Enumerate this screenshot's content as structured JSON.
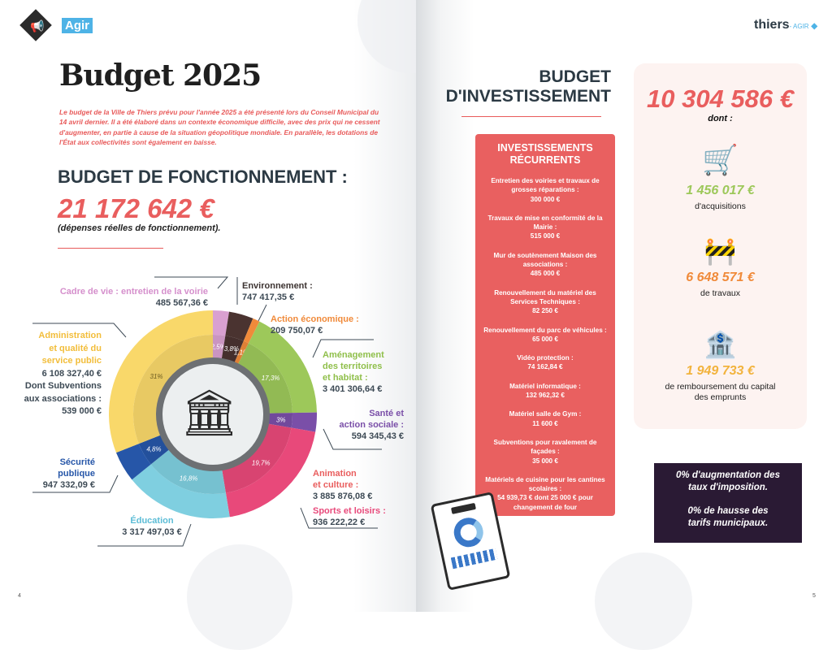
{
  "header": {
    "section_tag": "Agir",
    "brand": "thiers",
    "brand_suffix": "- AGIR"
  },
  "left": {
    "title": "Budget 2025",
    "intro": "Le budget de la Ville de Thiers prévu pour l'année 2025 a été présenté lors du Conseil Municipal du 14 avril dernier. Il a été élaboré dans un contexte économique difficile, avec des prix qui ne cessent d'augmenter, en partie à cause de la situation géopolitique mondiale. En parallèle, les dotations de l'État aux collectivités sont également en baisse.",
    "section_title": "BUDGET DE FONCTIONNEMENT :",
    "total": "21 172 642 €",
    "total_note": "(dépenses réelles de fonctionnement).",
    "page_number": "4"
  },
  "chart_data": {
    "type": "pie",
    "title": "Budget de fonctionnement",
    "slices": [
      {
        "name": "Cadre de vie : entretien de la voirie",
        "amount": "485 567,36 €",
        "percent": 2.5,
        "label": "2,5%",
        "color": "#d9a0d0"
      },
      {
        "name": "Environnement :",
        "amount": "747 417,35 €",
        "percent": 3.8,
        "label": "3,8%",
        "color": "#4a3330"
      },
      {
        "name": "Action économique :",
        "amount": "209 750,07 €",
        "percent": 1.1,
        "label": "1,1%",
        "color": "#f08a3a"
      },
      {
        "name": "Aménagement des territoires et habitat :",
        "amount": "3 401 306,64 €",
        "percent": 17.3,
        "label": "17,3%",
        "color": "#9dc85a"
      },
      {
        "name": "Santé et action sociale :",
        "amount": "594 345,43 €",
        "percent": 3,
        "label": "3%",
        "color": "#7a4fa8"
      },
      {
        "name": "Animation et culture : / Sports et loisirs :",
        "amount": "3 885 876,08 € / 936 222,22 €",
        "percent": 19.7,
        "label": "19,7%",
        "color": "#e8497a"
      },
      {
        "name": "Éducation",
        "amount": "3 317 497,03 €",
        "percent": 16.8,
        "label": "16,8%",
        "color": "#7fcfe0"
      },
      {
        "name": "Sécurité publique",
        "amount": "947 332,09 €",
        "percent": 4.8,
        "label": "4,8%",
        "color": "#2656a8"
      },
      {
        "name": "Administration et qualité du service public",
        "amount": "6 108 327,40 €",
        "percent": 31,
        "label": "31%",
        "color": "#f9d86a"
      }
    ]
  },
  "labels": {
    "cadre": {
      "name": "Cadre de vie : entretien de la voirie",
      "value": "485 567,36 €"
    },
    "env": {
      "name": "Environnement :",
      "value": "747 417,35 €"
    },
    "eco": {
      "name": "Action économique :",
      "value": "209 750,07 €"
    },
    "amen": {
      "name1": "Aménagement",
      "name2": "des territoires",
      "name3": "et habitat :",
      "value": "3 401 306,64 €"
    },
    "sante": {
      "name1": "Santé et",
      "name2": "action sociale :",
      "value": "594 345,43 €"
    },
    "anim": {
      "name1": "Animation",
      "name2": "et culture :",
      "value": "3 885 876,08 €"
    },
    "sports": {
      "name": "Sports et loisirs :",
      "value": "936 222,22 €"
    },
    "edu": {
      "name": "Éducation",
      "value": "3 317 497,03 €"
    },
    "secu": {
      "name1": "Sécurité",
      "name2": "publique",
      "value": "947 332,09 €"
    },
    "admin": {
      "name1": "Administration",
      "name2": "et qualité du",
      "name3": "service public",
      "value": "6 108 327,40 €",
      "sub1": "Dont Subventions",
      "sub2": "aux associations :",
      "sub_value": "539 000 €"
    }
  },
  "right": {
    "title1": "BUDGET",
    "title2": "D'INVESTISSEMENT",
    "recurring_title": "INVESTISSEMENTS RÉCURRENTS",
    "recurring": [
      {
        "label": "Entretien des voiries et travaux de grosses réparations :",
        "value": "300 000 €"
      },
      {
        "label": "Travaux de mise en conformité de la Mairie :",
        "value": "515 000 €"
      },
      {
        "label": "Mur de soutènement Maison des associations :",
        "value": "485 000 €"
      },
      {
        "label": "Renouvellement du matériel des Services Techniques :",
        "value": "82 250 €"
      },
      {
        "label": "Renouvellement du parc de véhicules :",
        "value": "65 000 €"
      },
      {
        "label": "Vidéo protection :",
        "value": "74 162,84 €"
      },
      {
        "label": "Matériel informatique :",
        "value": "132 962,32 €"
      },
      {
        "label": "Matériel salle de Gym :",
        "value": "11 600 €"
      },
      {
        "label": "Subventions pour ravalement de façades :",
        "value": "35 000 €"
      },
      {
        "label": "Matériels de cuisine pour les cantines scolaires :",
        "value": "54 939,73 € dont 25 000 € pour changement de four"
      }
    ],
    "total": "10 304 586 €",
    "dont": "dont :",
    "stats": [
      {
        "value": "1 456 017 €",
        "desc": "d'acquisitions",
        "color": "#9dc85a",
        "icon": "shopping-cart-icon"
      },
      {
        "value": "6 648 571 €",
        "desc": "de travaux",
        "color": "#f08a3a",
        "icon": "roadwork-sign-icon"
      },
      {
        "value": "1 949 733 €",
        "desc": "de remboursement du capital des emprunts",
        "color": "#f2b33d",
        "icon": "bank-icon"
      }
    ],
    "tax1": "0% d'augmentation des taux d'imposition.",
    "tax2": "0% de hausse des tarifs municipaux.",
    "page_number": "5"
  }
}
